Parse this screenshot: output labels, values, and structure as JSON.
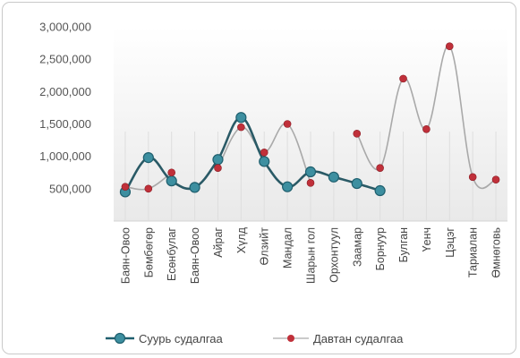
{
  "chart_data": {
    "type": "line",
    "title": "",
    "xlabel": "",
    "ylabel": "",
    "ylim": [
      0,
      3000000
    ],
    "y_ticks": [
      "",
      "500,000",
      "1,000,000",
      "1,500,000",
      "2,000,000",
      "2,500,000",
      "3,000,000"
    ],
    "categories": [
      "Баян-Овоо",
      "Бөмбөгөр",
      "Есөнбулаг",
      "Баян-Овоо",
      "Айраг",
      "Хүлд",
      "Өлзийт",
      "Мандал",
      "Шарын гол",
      "Орхонтуул",
      "Заамар",
      "Борнуур",
      "Булган",
      "Үенч",
      "Цэцэг",
      "Тариалан",
      "Өмнөговь"
    ],
    "series": [
      {
        "name": "Суурь судалгаа",
        "color": "#3d8fa0",
        "values": [
          450000,
          980000,
          620000,
          520000,
          950000,
          1600000,
          920000,
          530000,
          760000,
          680000,
          580000,
          470000,
          null,
          null,
          null,
          null,
          null
        ]
      },
      {
        "name": "Давтан судалгаа",
        "color": "#c0303a",
        "values": [
          530000,
          500000,
          750000,
          null,
          820000,
          1450000,
          1060000,
          1500000,
          590000,
          null,
          1350000,
          820000,
          2200000,
          1420000,
          2700000,
          680000,
          640000
        ]
      }
    ],
    "grid": false,
    "legend": "bottom"
  }
}
